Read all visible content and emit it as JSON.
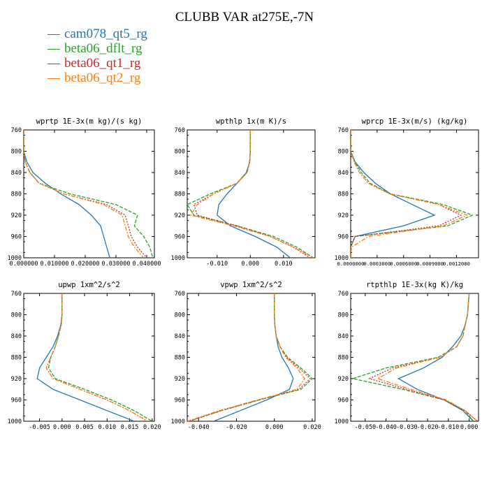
{
  "title": "CLUBB VAR at275E,-7N",
  "legend": [
    {
      "label": "cam078_qt5_rg",
      "color": "#1f77b4"
    },
    {
      "label": "beta06_dflt_rg",
      "color": "#2ca02c"
    },
    {
      "label": "beta06_qt1_rg",
      "color": "#d62728"
    },
    {
      "label": "beta06_qt2_rg",
      "color": "#ff7f0e"
    }
  ],
  "chart_data": [
    {
      "type": "line",
      "title": "wprtp  1E-3x(m kg)/(s kg)",
      "xlim": [
        0,
        0.0425
      ],
      "xticks": [
        0,
        0.01,
        0.02,
        0.03,
        0.04
      ],
      "xticklabels": [
        "0.000000",
        "0.010000",
        "0.020000",
        "0.030000",
        "0.040000"
      ],
      "ylim": [
        760,
        1000
      ],
      "yticks": [
        760,
        800,
        840,
        880,
        920,
        960,
        1000
      ],
      "y": [
        760,
        800,
        820,
        840,
        860,
        880,
        900,
        920,
        940,
        960,
        980,
        1000
      ],
      "series": [
        {
          "name": "cam078_qt5_rg",
          "values": [
            0.0,
            0.0,
            0.001,
            0.003,
            0.007,
            0.012,
            0.018,
            0.022,
            0.025,
            0.026,
            0.027,
            0.028
          ]
        },
        {
          "name": "beta06_dflt_rg",
          "values": [
            0.0,
            0.0,
            0.0005,
            0.002,
            0.005,
            0.015,
            0.03,
            0.037,
            0.036,
            0.039,
            0.041,
            0.042
          ]
        },
        {
          "name": "beta06_qt1_rg",
          "values": [
            0.0,
            0.0,
            0.0005,
            0.002,
            0.005,
            0.013,
            0.027,
            0.033,
            0.034,
            0.035,
            0.037,
            0.04
          ]
        },
        {
          "name": "beta06_qt2_rg",
          "values": [
            0.0,
            0.0,
            0.0005,
            0.002,
            0.005,
            0.013,
            0.026,
            0.032,
            0.033,
            0.034,
            0.036,
            0.039
          ]
        }
      ]
    },
    {
      "type": "line",
      "title": "wpthlp  1x(m K)/s",
      "xlim": [
        -0.019,
        0.0195
      ],
      "xticks": [
        -0.01,
        0,
        0.01
      ],
      "xticklabels": [
        "-0.010",
        "0.000",
        "0.010"
      ],
      "ylim": [
        760,
        1000
      ],
      "yticks": [
        760,
        800,
        840,
        880,
        920,
        960,
        1000
      ],
      "y": [
        760,
        800,
        820,
        840,
        860,
        880,
        900,
        920,
        940,
        960,
        980,
        1000
      ],
      "series": [
        {
          "name": "cam078_qt5_rg",
          "values": [
            0.0,
            0.0,
            -0.0002,
            -0.0012,
            -0.004,
            -0.007,
            -0.0095,
            -0.01,
            -0.006,
            0.0015,
            0.008,
            0.012
          ]
        },
        {
          "name": "beta06_dflt_rg",
          "values": [
            0.0,
            0.0,
            -0.0002,
            -0.001,
            -0.004,
            -0.012,
            -0.019,
            -0.017,
            -0.004,
            0.007,
            0.014,
            0.019
          ]
        },
        {
          "name": "beta06_qt1_rg",
          "values": [
            0.0,
            0.0,
            -0.0002,
            -0.001,
            -0.004,
            -0.011,
            -0.017,
            -0.016,
            -0.004,
            0.006,
            0.013,
            0.018
          ]
        },
        {
          "name": "beta06_qt2_rg",
          "values": [
            0.0,
            0.0,
            -0.0002,
            -0.001,
            -0.004,
            -0.011,
            -0.016,
            -0.018,
            -0.005,
            0.006,
            0.013,
            0.019
          ]
        }
      ]
    },
    {
      "type": "line",
      "title": "wprcp  1E-3x(m/s) (kg/kg)",
      "xlim": [
        0,
        0.00145
      ],
      "xticks": [
        0,
        0.0003,
        0.0006,
        0.0009,
        0.0012
      ],
      "xticklabels": [
        "0.0000000",
        "0.0003000",
        "0.0006000",
        "0.0009000",
        "0.0012000"
      ],
      "ylim": [
        760,
        1000
      ],
      "yticks": [
        760,
        800,
        840,
        880,
        920,
        960,
        1000
      ],
      "y": [
        760,
        800,
        820,
        840,
        860,
        880,
        900,
        920,
        940,
        960,
        980,
        1000
      ],
      "series": [
        {
          "name": "cam078_qt5_rg",
          "values": [
            0.0,
            0.0,
            5e-05,
            0.00015,
            0.00028,
            0.00045,
            0.0007,
            0.00095,
            0.0006,
            5e-05,
            0.0,
            0.0
          ]
        },
        {
          "name": "beta06_dflt_rg",
          "values": [
            0.0,
            0.0,
            5e-05,
            0.00012,
            0.00022,
            0.00045,
            0.00105,
            0.00138,
            0.0011,
            5e-05,
            0.0,
            0.0
          ]
        },
        {
          "name": "beta06_qt1_rg",
          "values": [
            0.0,
            0.0,
            4e-05,
            0.0001,
            0.0002,
            0.00044,
            0.001,
            0.00125,
            0.001,
            5e-05,
            0.0,
            0.0
          ]
        },
        {
          "name": "beta06_qt2_rg",
          "values": [
            0.0,
            0.0,
            4e-05,
            0.0001,
            0.0002,
            0.00044,
            0.001,
            0.00132,
            0.00105,
            0.0002,
            1e-05,
            0.0
          ]
        }
      ]
    },
    {
      "type": "line",
      "title": "upwp  1xm^2/s^2",
      "xlim": [
        -0.0085,
        0.0205
      ],
      "xticks": [
        -0.005,
        0,
        0.005,
        0.01,
        0.015,
        0.02
      ],
      "xticklabels": [
        "-0.005",
        "0.000",
        "0.005",
        "0.010",
        "0.015",
        "0.020"
      ],
      "ylim": [
        760,
        1000
      ],
      "yticks": [
        760,
        800,
        840,
        880,
        920,
        960,
        1000
      ],
      "y": [
        760,
        800,
        820,
        840,
        860,
        880,
        900,
        920,
        940,
        960,
        980,
        1000
      ],
      "series": [
        {
          "name": "cam078_qt5_rg",
          "values": [
            0.0,
            0.0,
            -0.0003,
            -0.001,
            -0.002,
            -0.0035,
            -0.005,
            -0.0055,
            -0.002,
            0.004,
            0.01,
            0.016
          ]
        },
        {
          "name": "beta06_dflt_rg",
          "values": [
            0.0,
            0.0,
            -0.0002,
            -0.0008,
            -0.0015,
            -0.0025,
            -0.003,
            -0.0015,
            0.005,
            0.011,
            0.016,
            0.02
          ]
        },
        {
          "name": "beta06_qt1_rg",
          "values": [
            0.0,
            0.0,
            -0.0002,
            -0.0008,
            -0.0015,
            -0.0025,
            -0.0035,
            -0.002,
            0.004,
            0.01,
            0.015,
            0.019
          ]
        },
        {
          "name": "beta06_qt2_rg",
          "values": [
            0.0,
            0.0,
            -0.0002,
            -0.0008,
            -0.0015,
            -0.0025,
            -0.0035,
            -0.002,
            0.004,
            0.01,
            0.015,
            0.019
          ]
        }
      ]
    },
    {
      "type": "line",
      "title": "vpwp  1xm^2/s^2",
      "xlim": [
        -0.046,
        0.0215
      ],
      "xticks": [
        -0.04,
        -0.02,
        0,
        0.02
      ],
      "xticklabels": [
        "-0.040",
        "-0.020",
        "0.000",
        "0.020"
      ],
      "ylim": [
        760,
        1000
      ],
      "yticks": [
        760,
        800,
        840,
        880,
        920,
        960,
        1000
      ],
      "y": [
        760,
        800,
        820,
        840,
        860,
        880,
        900,
        920,
        940,
        960,
        980,
        1000
      ],
      "series": [
        {
          "name": "cam078_qt5_rg",
          "values": [
            0.0,
            0.0,
            0.0003,
            0.001,
            0.002,
            0.004,
            0.0075,
            0.01,
            0.008,
            -0.004,
            -0.018,
            -0.032
          ]
        },
        {
          "name": "beta06_dflt_rg",
          "values": [
            0.0,
            0.0,
            0.0003,
            0.001,
            0.003,
            0.007,
            0.014,
            0.02,
            0.014,
            -0.008,
            -0.028,
            -0.045
          ]
        },
        {
          "name": "beta06_qt1_rg",
          "values": [
            0.0,
            0.0,
            0.0003,
            0.001,
            0.003,
            0.0065,
            0.013,
            0.019,
            0.013,
            -0.008,
            -0.028,
            -0.045
          ]
        },
        {
          "name": "beta06_qt2_rg",
          "values": [
            0.0,
            0.0,
            0.0003,
            0.001,
            0.003,
            0.006,
            0.012,
            0.016,
            0.012,
            -0.009,
            -0.029,
            -0.046
          ]
        }
      ]
    },
    {
      "type": "line",
      "title": "rtpthlp  1E-3x(kg K)/kg",
      "xlim": [
        -0.057,
        0.0045
      ],
      "xticks": [
        -0.05,
        -0.04,
        -0.03,
        -0.02,
        -0.01,
        0
      ],
      "xticklabels": [
        "-0.050",
        "-0.040",
        "-0.030",
        "-0.020",
        "-0.010",
        "0.000"
      ],
      "ylim": [
        760,
        1000
      ],
      "yticks": [
        760,
        800,
        840,
        880,
        920,
        960,
        1000
      ],
      "y": [
        760,
        800,
        820,
        840,
        860,
        880,
        900,
        920,
        940,
        960,
        980,
        1000
      ],
      "series": [
        {
          "name": "cam078_qt5_rg",
          "values": [
            0.0,
            -0.0008,
            -0.002,
            -0.004,
            -0.008,
            -0.013,
            -0.022,
            -0.034,
            -0.025,
            -0.012,
            -0.003,
            0.002
          ]
        },
        {
          "name": "beta06_dflt_rg",
          "values": [
            0.0,
            -0.0008,
            -0.002,
            -0.003,
            -0.006,
            -0.015,
            -0.04,
            -0.056,
            -0.032,
            -0.012,
            -0.002,
            0.002
          ]
        },
        {
          "name": "beta06_qt1_rg",
          "values": [
            0.0,
            -0.0008,
            -0.002,
            -0.003,
            -0.006,
            -0.014,
            -0.037,
            -0.048,
            -0.03,
            -0.012,
            -0.002,
            0.004
          ]
        },
        {
          "name": "beta06_qt2_rg",
          "values": [
            0.0,
            -0.0008,
            -0.002,
            -0.003,
            -0.006,
            -0.014,
            -0.035,
            -0.044,
            -0.028,
            -0.011,
            -0.002,
            0.004
          ]
        }
      ]
    }
  ]
}
